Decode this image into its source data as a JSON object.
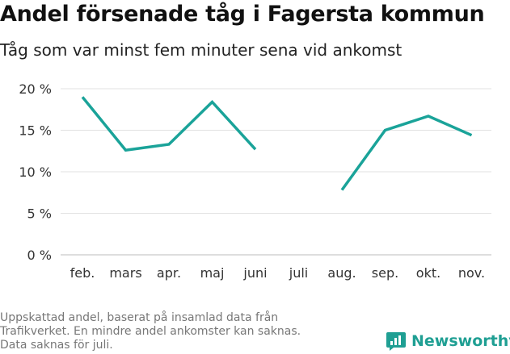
{
  "header": {
    "title": "Andel försenade tåg i Fagersta kommun",
    "subtitle": "Tåg som var minst fem minuter sena vid ankomst"
  },
  "footnote": {
    "lines": [
      "Uppskattad andel, baserat på insamlad data från",
      "Trafikverket. En mindre andel ankomster kan saknas.",
      "Data saknas för juli."
    ]
  },
  "brand": {
    "name": "Newsworthy",
    "icon": "newsworthy-logo-icon",
    "color": "#1f9f93"
  },
  "chart_data": {
    "type": "line",
    "categories": [
      "feb.",
      "mars",
      "apr.",
      "maj",
      "juni",
      "juli",
      "aug.",
      "sep.",
      "okt.",
      "nov."
    ],
    "series": [
      {
        "values": [
          19.0,
          12.6,
          13.3,
          18.4,
          12.7,
          null,
          7.8,
          15.0,
          16.7,
          14.4
        ],
        "color": "#1aa399"
      }
    ],
    "ylim": [
      0,
      20
    ],
    "yticks": [
      0,
      5,
      10,
      15,
      20
    ],
    "ytick_labels": [
      "0 %",
      "5 %",
      "10 %",
      "15 %",
      "20 %"
    ],
    "grid": true,
    "xlabel": "",
    "ylabel": ""
  }
}
